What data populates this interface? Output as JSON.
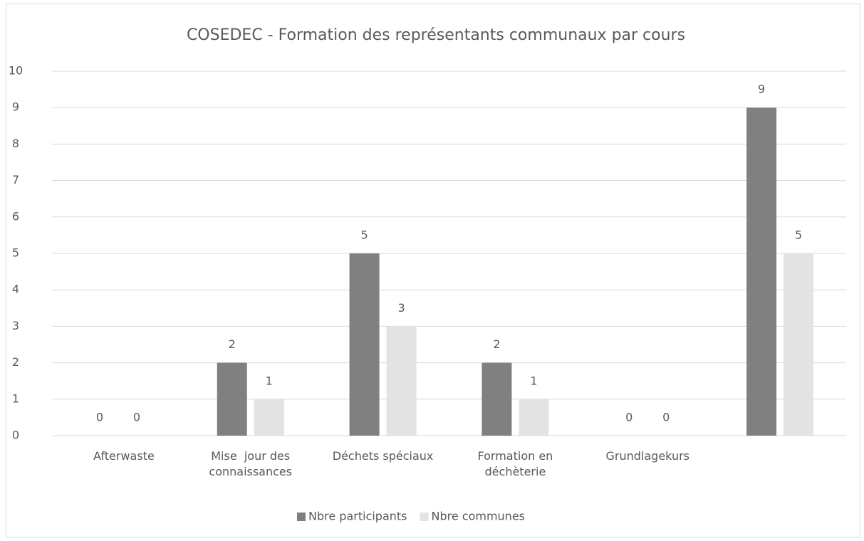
{
  "chart_data": {
    "type": "bar",
    "title": "COSEDEC - Formation des représentants communaux par cours",
    "categories": [
      "Afterwaste",
      "Mise  jour des connaissances",
      "Déchets spéciaux",
      "Formation en déchèterie",
      "Grundlagekurs",
      null
    ],
    "series": [
      {
        "name": "Nbre participants",
        "color": "#808080",
        "values": [
          0,
          2,
          5,
          2,
          0,
          9
        ]
      },
      {
        "name": "Nbre communes",
        "color": "#e3e3e3",
        "values": [
          0,
          1,
          3,
          1,
          0,
          5
        ]
      }
    ],
    "ylim": [
      0,
      10
    ],
    "yticks": [
      0,
      1,
      2,
      3,
      4,
      5,
      6,
      7,
      8,
      9,
      10
    ],
    "grid": true,
    "legend": "bottom"
  }
}
